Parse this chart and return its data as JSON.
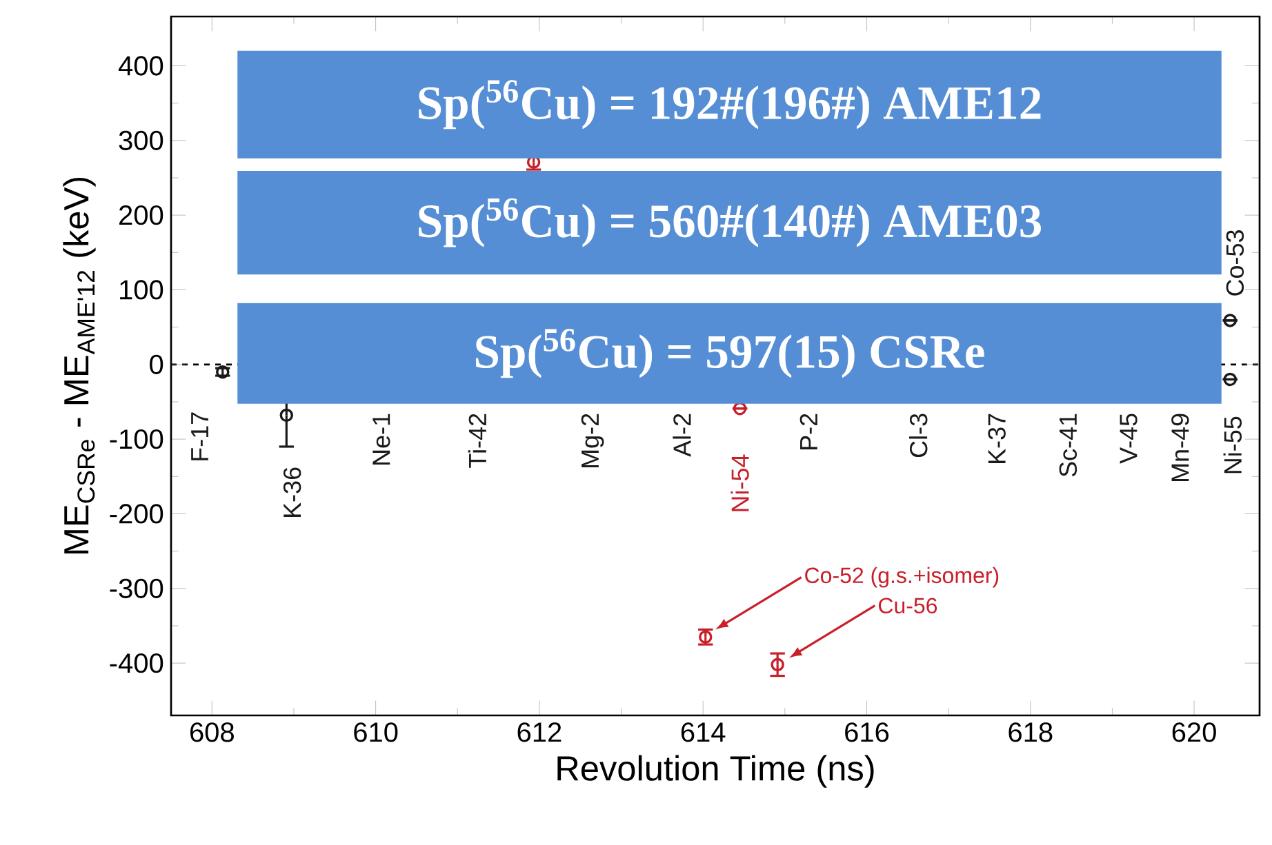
{
  "chart_data": {
    "type": "scatter",
    "xlabel": "Revolution Time (ns)",
    "ylabel": "ME$_{CSRe}$ - ME$_{AME'12}$ (keV)",
    "xlim": [
      607.5,
      620.8
    ],
    "ylim": [
      -470,
      466
    ],
    "xticks": [
      608,
      610,
      612,
      614,
      616,
      618,
      620
    ],
    "yticks": [
      -400,
      -300,
      -200,
      -100,
      0,
      100,
      200,
      300,
      400
    ],
    "marker": "circle",
    "ref_lines": [
      {
        "axis": "y",
        "value": 0,
        "line_style": "dashed",
        "color": "#000000"
      }
    ],
    "series": [
      {
        "color": "#1a1a1a",
        "x": [
          608.13,
          608.91,
          620.44,
          620.44
        ],
        "values": [
          -10,
          -68,
          59,
          -20
        ],
        "errors": [
          5,
          42,
          null,
          null
        ]
      },
      {
        "color": "#c8202a",
        "x": [
          611.93,
          614.45,
          614.03,
          614.91
        ],
        "values": [
          271,
          -59,
          -365,
          -402
        ],
        "errors": [
          10,
          null,
          10,
          15
        ]
      }
    ],
    "annotations": [
      "F-17",
      "K-36",
      "Ne-1",
      "Ti-42",
      "Mg-2",
      "Al-2",
      "Ni-54",
      "P-2",
      "Cl-3",
      "K-37",
      "Sc-41",
      "V-45",
      "Mn-49",
      "Ni-55",
      "Co-53",
      "Co-52 (g.s.+isomer)",
      "Cu-56",
      "Sp($^{56}$Cu) = 192#(196#) AME12",
      "Sp($^{56}$Cu) = 560#(140#) AME03",
      "Sp($^{56}$Cu) = 597(15)      CSRe"
    ]
  }
}
